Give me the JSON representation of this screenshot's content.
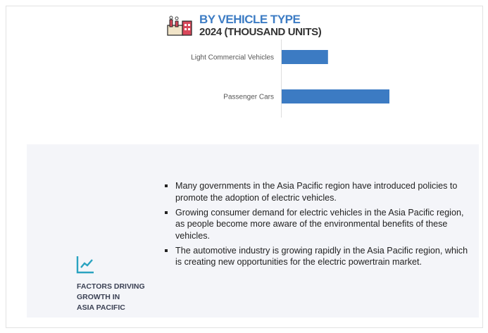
{
  "header": {
    "title": "BY VEHICLE TYPE",
    "subtitle": "2024 (THOUSAND UNITS)",
    "icon": "factory-icon"
  },
  "chart_data": {
    "type": "bar",
    "orientation": "horizontal",
    "title": "BY VEHICLE TYPE",
    "subtitle": "2024 (THOUSAND UNITS)",
    "categories": [
      "Light Commercial Vehicles",
      "Passenger Cars"
    ],
    "values_relative": [
      0.43,
      1.0
    ],
    "bar_color": "#3c7bc3",
    "grid": false
  },
  "factors": {
    "icon": "trend-chart-icon",
    "heading": [
      "FACTORS DRIVING",
      "GROWTH IN",
      "ASIA PACIFIC"
    ],
    "items": [
      "Many governments in the Asia Pacific region have introduced policies to promote the adoption of electric vehicles.",
      "Growing consumer demand for electric vehicles in the Asia Pacific region, as people become more aware of the environmental benefits of these vehicles.",
      "The automotive industry is growing rapidly in the Asia Pacific region, which is creating new opportunities for the electric powertrain market."
    ]
  }
}
